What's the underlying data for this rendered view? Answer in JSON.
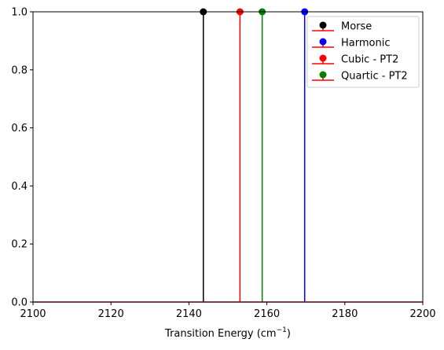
{
  "chart_data": {
    "type": "stem",
    "xlabel": "Transition Energy (cm",
    "xlabel_sup": "−1",
    "xlabel_close": ")",
    "ylabel": "",
    "title": "",
    "xlim": [
      2100,
      2200
    ],
    "ylim": [
      0.0,
      1.0
    ],
    "xticks": [
      2100,
      2120,
      2140,
      2160,
      2180,
      2200
    ],
    "yticks": [
      0.0,
      0.2,
      0.4,
      0.6,
      0.8,
      1.0
    ],
    "xtick_labels": [
      "2100",
      "2120",
      "2140",
      "2160",
      "2180",
      "2200"
    ],
    "ytick_labels": [
      "0.0",
      "0.2",
      "0.4",
      "0.6",
      "0.8",
      "1.0"
    ],
    "grid": false,
    "legend_position": "top-right",
    "baseline_color": "#ff0000",
    "series": [
      {
        "name": "Morse",
        "color": "#000000",
        "x": 2143.7,
        "y": 1.0
      },
      {
        "name": "Harmonic",
        "color": "#0000ff",
        "x": 2169.7,
        "y": 1.0
      },
      {
        "name": "Cubic - PT2",
        "color": "#ff0000",
        "x": 2153.1,
        "y": 1.0
      },
      {
        "name": "Quartic - PT2",
        "color": "#008000",
        "x": 2158.8,
        "y": 1.0
      }
    ]
  }
}
